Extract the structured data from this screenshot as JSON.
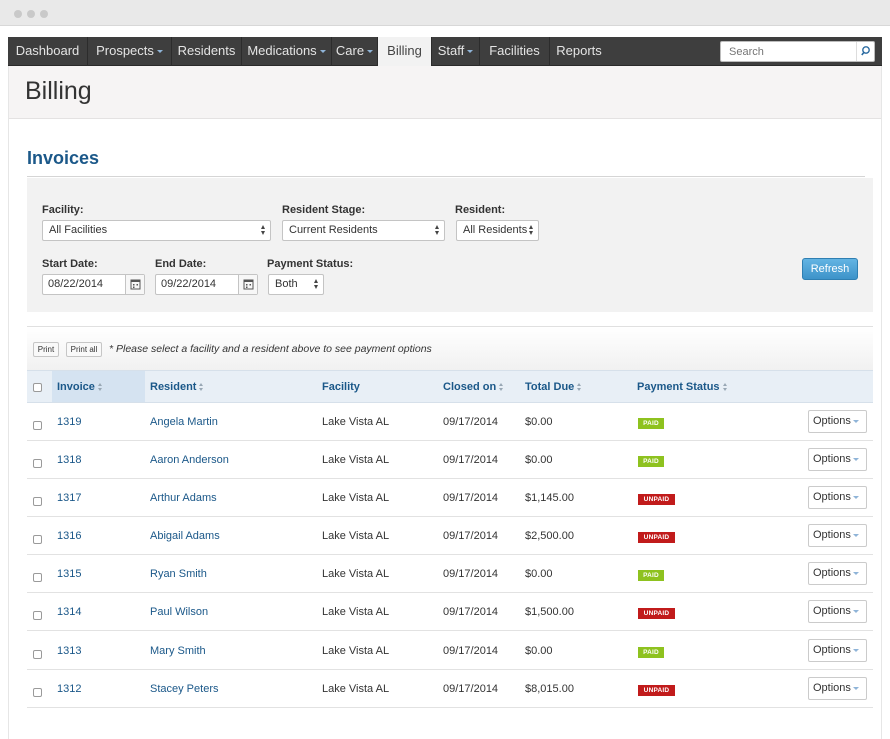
{
  "nav": {
    "items": [
      {
        "label": "Dashboard",
        "has_menu": false,
        "active": false
      },
      {
        "label": "Prospects",
        "has_menu": true,
        "active": false
      },
      {
        "label": "Residents",
        "has_menu": false,
        "active": false
      },
      {
        "label": "Medications",
        "has_menu": true,
        "active": false
      },
      {
        "label": "Care",
        "has_menu": true,
        "active": false
      },
      {
        "label": "Billing",
        "has_menu": false,
        "active": true
      },
      {
        "label": "Staff",
        "has_menu": true,
        "active": false
      },
      {
        "label": "Facilities",
        "has_menu": false,
        "active": false
      },
      {
        "label": "Reports",
        "has_menu": false,
        "active": false
      }
    ],
    "search_placeholder": "Search",
    "search_icon": "search-icon"
  },
  "page": {
    "title": "Billing",
    "section_title": "Invoices"
  },
  "filters": {
    "facility_label": "Facility:",
    "facility_value": "All Facilities",
    "stage_label": "Resident Stage:",
    "stage_value": "Current Residents",
    "resident_label": "Resident:",
    "resident_value": "All Residents",
    "start_label": "Start Date:",
    "start_value": "08/22/2014",
    "end_label": "End Date:",
    "end_value": "09/22/2014",
    "payment_label": "Payment Status:",
    "payment_value": "Both",
    "refresh_label": "Refresh",
    "calendar_icon": "calendar-icon"
  },
  "toolbar": {
    "print_label": "Print",
    "print_all_label": "Print all",
    "note": "* Please select a facility and a resident above to see payment options"
  },
  "table": {
    "headers": {
      "invoice": "Invoice",
      "resident": "Resident",
      "facility": "Facility",
      "closed_on": "Closed on",
      "total_due": "Total Due",
      "payment_status": "Payment Status"
    },
    "options_label": "Options",
    "rows": [
      {
        "invoice": "1319",
        "resident": "Angela Martin",
        "facility": "Lake Vista AL",
        "closed_on": "09/17/2014",
        "total_due": "$0.00",
        "status": "PAID"
      },
      {
        "invoice": "1318",
        "resident": "Aaron Anderson",
        "facility": "Lake Vista AL",
        "closed_on": "09/17/2014",
        "total_due": "$0.00",
        "status": "PAID"
      },
      {
        "invoice": "1317",
        "resident": "Arthur Adams",
        "facility": "Lake Vista AL",
        "closed_on": "09/17/2014",
        "total_due": "$1,145.00",
        "status": "UNPAID"
      },
      {
        "invoice": "1316",
        "resident": "Abigail Adams",
        "facility": "Lake Vista AL",
        "closed_on": "09/17/2014",
        "total_due": "$2,500.00",
        "status": "UNPAID"
      },
      {
        "invoice": "1315",
        "resident": "Ryan Smith",
        "facility": "Lake Vista AL",
        "closed_on": "09/17/2014",
        "total_due": "$0.00",
        "status": "PAID"
      },
      {
        "invoice": "1314",
        "resident": "Paul Wilson",
        "facility": "Lake Vista AL",
        "closed_on": "09/17/2014",
        "total_due": "$1,500.00",
        "status": "UNPAID"
      },
      {
        "invoice": "1313",
        "resident": "Mary Smith",
        "facility": "Lake Vista AL",
        "closed_on": "09/17/2014",
        "total_due": "$0.00",
        "status": "PAID"
      },
      {
        "invoice": "1312",
        "resident": "Stacey Peters",
        "facility": "Lake Vista AL",
        "closed_on": "09/17/2014",
        "total_due": "$8,015.00",
        "status": "UNPAID"
      }
    ]
  },
  "colors": {
    "nav_bg": "#3e3e3e",
    "link": "#1b5889",
    "paid": "#8ec21f",
    "unpaid": "#c11b1b",
    "refresh": "#4ba3d8"
  }
}
